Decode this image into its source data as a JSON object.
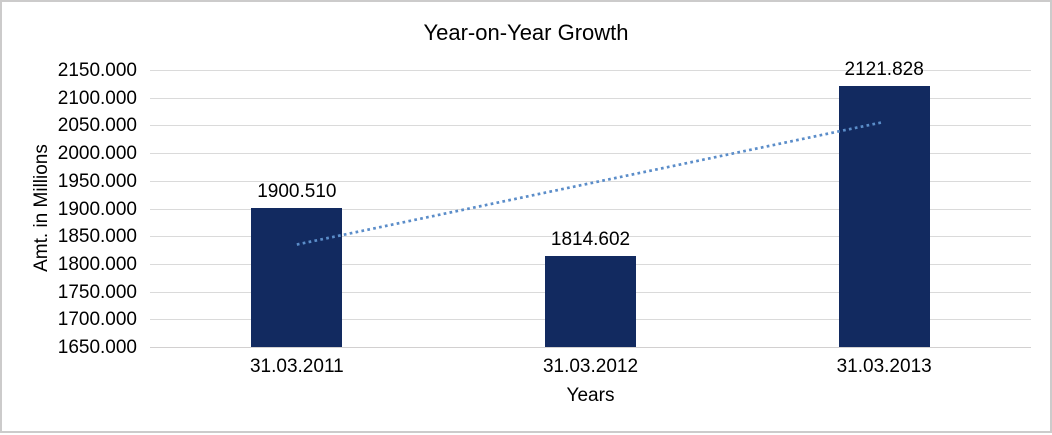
{
  "chart_data": {
    "type": "bar",
    "title": "Year-on-Year Growth",
    "xlabel": "Years",
    "ylabel": "Amt. in Millions",
    "categories": [
      "31.03.2011",
      "31.03.2012",
      "31.03.2013"
    ],
    "values": [
      1900.51,
      1814.602,
      2121.828
    ],
    "value_labels": [
      "1900.510",
      "1814.602",
      "2121.828"
    ],
    "ylim": [
      1650,
      2150
    ],
    "y_tick_step": 50,
    "y_tick_labels": [
      "2150.000",
      "2100.000",
      "2050.000",
      "2000.000",
      "1950.000",
      "1900.000",
      "1850.000",
      "1800.000",
      "1750.000",
      "1700.000",
      "1650.000"
    ],
    "grid": true,
    "legend": false,
    "trendline": {
      "type": "linear",
      "style": "dotted",
      "start_value": 1835.0,
      "end_value": 2056.3
    }
  },
  "colors": {
    "bar": "#122a60",
    "trendline": "#5b8dc9",
    "gridline": "#dadada",
    "axis_line": "#d2d0d0",
    "text": "#000000",
    "frame_border": "#cccbcb",
    "background": "#ffffff"
  }
}
